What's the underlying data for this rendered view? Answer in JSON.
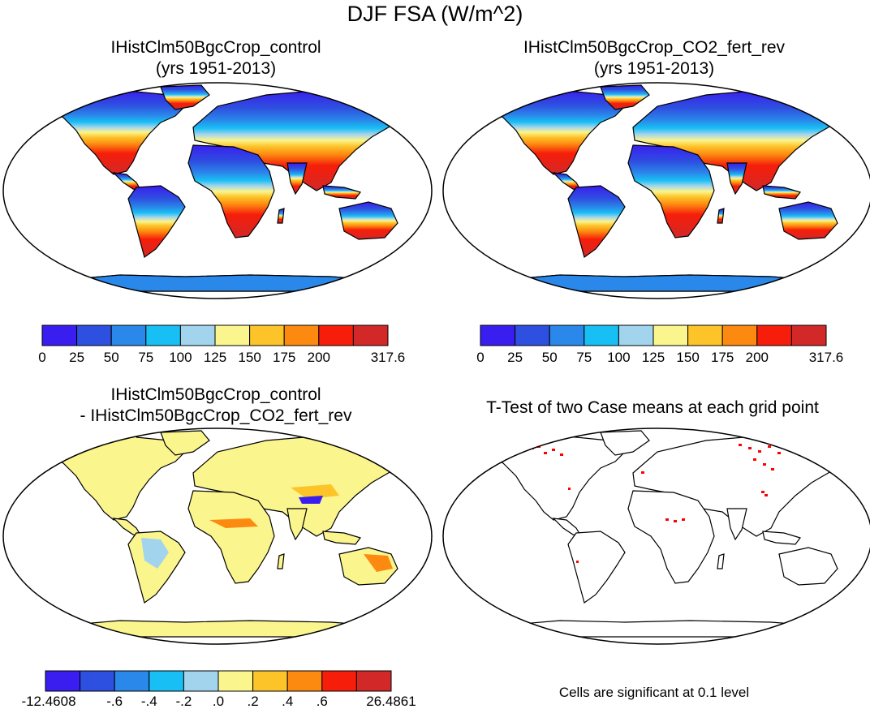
{
  "main_title": "DJF FSA (W/m^2)",
  "panels": [
    {
      "title1": "IHistClm50BgcCrop_control",
      "title2": "(yrs 1951-2013)"
    },
    {
      "title1": "IHistClm50BgcCrop_CO2_fert_rev",
      "title2": "(yrs 1951-2013)"
    },
    {
      "title1": "IHistClm50BgcCrop_control",
      "title2": "- IHistClm50BgcCrop_CO2_fert_rev"
    },
    {
      "title1": "T-Test of two Case means at each grid point",
      "title2": ""
    }
  ],
  "colorbar_abs": {
    "colors": [
      "#3a1ef0",
      "#2e50e0",
      "#2a88ea",
      "#18bff4",
      "#a2d4ee",
      "#fbf58e",
      "#fdc42a",
      "#fd8a10",
      "#f61e0a",
      "#d22828"
    ],
    "labels": [
      "0",
      "25",
      "50",
      "75",
      "100",
      "125",
      "150",
      "175",
      "200",
      "317.6"
    ]
  },
  "colorbar_diff": {
    "colors": [
      "#3a1ef0",
      "#2e50e0",
      "#2a88ea",
      "#18bff4",
      "#a2d4ee",
      "#fbf58e",
      "#fdc42a",
      "#fd8a10",
      "#f61e0a",
      "#d22828"
    ],
    "labels": [
      "-12.4608",
      "-.6",
      "-.4",
      "-.2",
      ".0",
      ".2",
      ".4",
      ".6",
      "26.4861"
    ]
  },
  "ttest_note": "Cells are significant at 0.1 level",
  "colors": {
    "land_outline": "#000000",
    "ocean": "#ffffff",
    "significant": "#ff0000"
  }
}
